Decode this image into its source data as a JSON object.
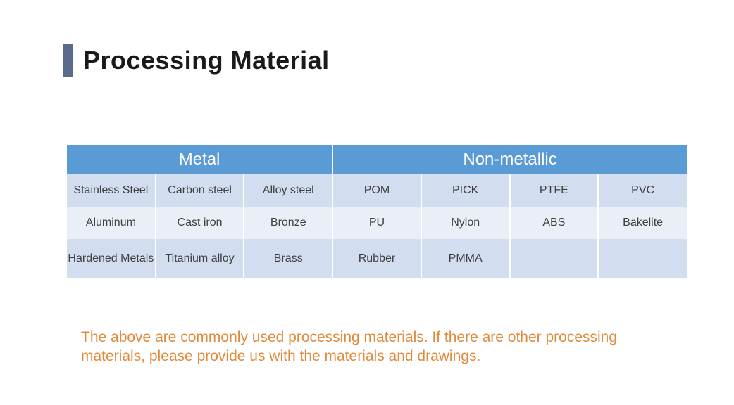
{
  "title": "Processing Material",
  "colors": {
    "accent_bar": "#5a6a8a",
    "title_text": "#1a1a1a",
    "header_bg": "#5b9bd5",
    "row_alt0": "#d2deef",
    "row_alt1": "#eaeff7",
    "cell_text": "#404040",
    "note_text": "#e08a3c"
  },
  "table": {
    "type": "table",
    "header": {
      "metal": "Metal",
      "nonmetal": "Non-metallic",
      "metal_span": 3,
      "nonmetal_span": 4
    },
    "rows": [
      [
        "Stainless Steel",
        "Carbon steel",
        "Alloy steel",
        "POM",
        "PICK",
        "PTFE",
        "PVC"
      ],
      [
        "Aluminum",
        "Cast iron",
        "Bronze",
        "PU",
        "Nylon",
        "ABS",
        "Bakelite"
      ],
      [
        "Hardened Metals",
        "Titanium alloy",
        "Brass",
        "Rubber",
        "PMMA",
        "",
        ""
      ]
    ]
  },
  "note": "The above are commonly used processing materials. If there are other processing materials, please provide us with the materials and drawings."
}
